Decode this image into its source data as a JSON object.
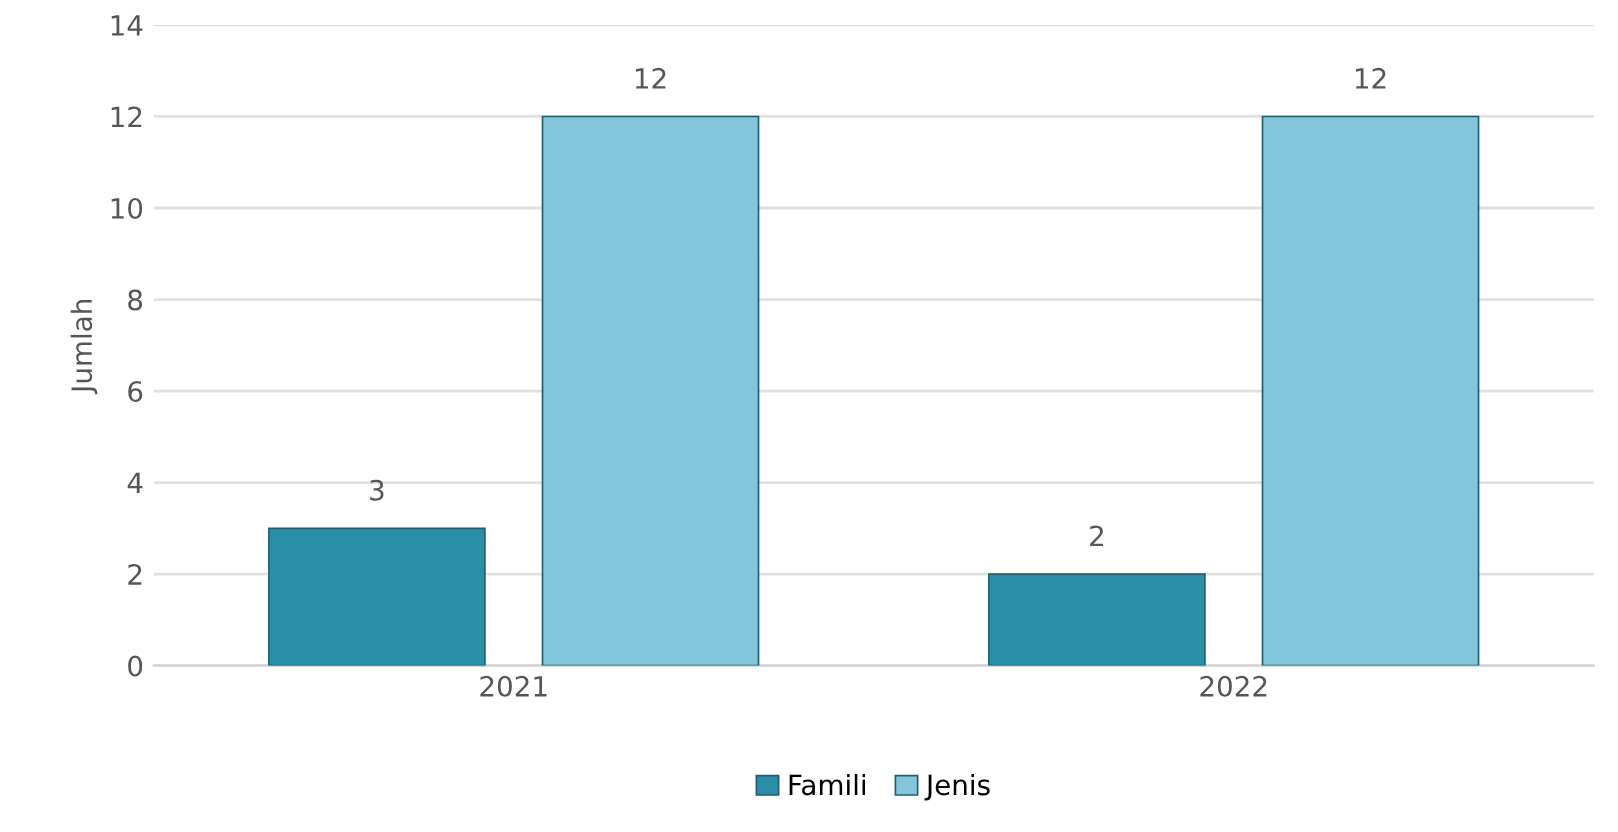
{
  "chart_data": {
    "type": "bar",
    "ylabel": "Jumlah",
    "categories": [
      "2021",
      "2022"
    ],
    "series": [
      {
        "name": "Famili",
        "color": "#2b8ea8",
        "values": [
          3,
          2
        ]
      },
      {
        "name": "Jenis",
        "color": "#82c6dc",
        "values": [
          12,
          12
        ]
      }
    ],
    "ylim": [
      0,
      14
    ],
    "yticks": [
      0,
      2,
      4,
      6,
      8,
      10,
      12,
      14
    ],
    "grid": "y",
    "legend": "bottom",
    "data_labels": true
  }
}
